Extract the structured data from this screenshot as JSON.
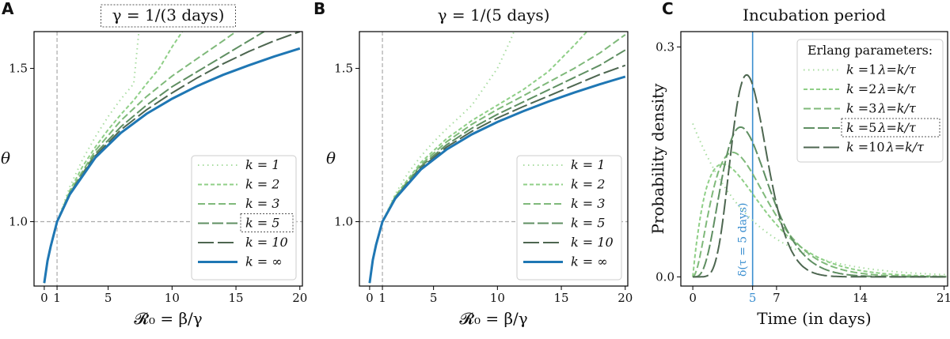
{
  "chart_data": [
    {
      "panel": "A",
      "type": "line",
      "title": "γ = 1/(3 days)",
      "title_boxed": true,
      "xlabel": "𝓡₀ = β/γ",
      "ylabel": "θ",
      "xlim": [
        -0.8,
        20.2
      ],
      "ylim": [
        0.79,
        1.62
      ],
      "xticks": [
        0,
        1,
        5,
        10,
        15,
        20
      ],
      "xtick_labels": [
        "0",
        "1",
        "5",
        "10",
        "15",
        "20"
      ],
      "yticks": [
        1.0,
        1.5
      ],
      "ytick_labels": [
        "1.0",
        "1.5"
      ],
      "reference_lines": {
        "vertical_x": 1,
        "horizontal_y": 1.0
      },
      "legend_position": "lower-right",
      "series": [
        {
          "name": "k = 1",
          "k": 1,
          "x": [
            0,
            0.25,
            0.5,
            1,
            2,
            3,
            4,
            5,
            6,
            7,
            7.4
          ],
          "y": [
            0.8,
            0.875,
            0.924,
            1.0,
            1.114,
            1.203,
            1.277,
            1.343,
            1.4,
            1.45,
            1.62
          ]
        },
        {
          "name": "k = 2",
          "k": 2,
          "x": [
            0,
            0.25,
            0.5,
            1,
            2,
            3,
            4,
            5,
            6,
            7,
            8,
            9,
            10,
            10.8
          ],
          "y": [
            0.8,
            0.874,
            0.922,
            1.0,
            1.102,
            1.18,
            1.244,
            1.3,
            1.35,
            1.396,
            1.45,
            1.5,
            1.57,
            1.62
          ]
        },
        {
          "name": "k = 3",
          "k": 3,
          "x": [
            0,
            0.25,
            0.5,
            1,
            2,
            4,
            6,
            8,
            10,
            12,
            14,
            15
          ],
          "y": [
            0.8,
            0.873,
            0.921,
            1.0,
            1.097,
            1.232,
            1.33,
            1.408,
            1.475,
            1.533,
            1.59,
            1.62
          ]
        },
        {
          "name": "k = 5",
          "k": 5,
          "x": [
            0,
            0.25,
            0.5,
            1,
            2,
            4,
            6,
            8,
            10,
            12,
            14,
            16,
            17.2
          ],
          "y": [
            0.8,
            0.873,
            0.92,
            1.0,
            1.093,
            1.222,
            1.31,
            1.38,
            1.44,
            1.49,
            1.54,
            1.59,
            1.62
          ]
        },
        {
          "name": "k = 10",
          "k": 10,
          "x": [
            0,
            0.25,
            0.5,
            1,
            2,
            4,
            6,
            8,
            10,
            12,
            14,
            16,
            18,
            20
          ],
          "y": [
            0.8,
            0.872,
            0.92,
            1.0,
            1.091,
            1.215,
            1.3,
            1.365,
            1.42,
            1.47,
            1.515,
            1.555,
            1.59,
            1.62
          ]
        },
        {
          "name": "k = ∞",
          "k": "inf",
          "x": [
            0,
            0.25,
            0.5,
            1,
            2,
            4,
            6,
            8,
            10,
            12,
            14,
            16,
            18,
            20
          ],
          "y": [
            0.8,
            0.872,
            0.919,
            1.0,
            1.089,
            1.209,
            1.29,
            1.352,
            1.401,
            1.443,
            1.479,
            1.51,
            1.539,
            1.565
          ]
        }
      ],
      "legend_highlight": "k = 5"
    },
    {
      "panel": "B",
      "type": "line",
      "title": "γ = 1/(5 days)",
      "title_boxed": false,
      "xlabel": "𝓡₀ = β/γ",
      "ylabel": "θ",
      "xlim": [
        -0.8,
        20.2
      ],
      "ylim": [
        0.79,
        1.62
      ],
      "xticks": [
        0,
        1,
        5,
        10,
        15,
        20
      ],
      "xtick_labels": [
        "0",
        "1",
        "5",
        "10",
        "15",
        "20"
      ],
      "yticks": [
        1.0,
        1.5
      ],
      "ytick_labels": [
        "1.0",
        "1.5"
      ],
      "reference_lines": {
        "vertical_x": 1,
        "horizontal_y": 1.0
      },
      "legend_position": "lower-right",
      "series": [
        {
          "name": "k = 1",
          "k": 1,
          "x": [
            0,
            0.25,
            0.5,
            1,
            2,
            3,
            4,
            5,
            6,
            7,
            8,
            9,
            10,
            11,
            11.3
          ],
          "y": [
            0.8,
            0.878,
            0.93,
            1.0,
            1.09,
            1.158,
            1.213,
            1.26,
            1.302,
            1.34,
            1.38,
            1.44,
            1.5,
            1.59,
            1.62
          ]
        },
        {
          "name": "k = 2",
          "k": 2,
          "x": [
            0,
            0.25,
            0.5,
            1,
            2,
            4,
            6,
            8,
            10,
            12,
            14,
            16,
            17
          ],
          "y": [
            0.8,
            0.877,
            0.928,
            1.0,
            1.084,
            1.193,
            1.27,
            1.33,
            1.38,
            1.43,
            1.49,
            1.575,
            1.62
          ]
        },
        {
          "name": "k = 3",
          "k": 3,
          "x": [
            0,
            0.25,
            0.5,
            1,
            2,
            4,
            6,
            8,
            10,
            12,
            14,
            16,
            18,
            20
          ],
          "y": [
            0.8,
            0.876,
            0.927,
            1.0,
            1.081,
            1.186,
            1.26,
            1.318,
            1.366,
            1.41,
            1.455,
            1.5,
            1.55,
            1.61
          ]
        },
        {
          "name": "k = 5",
          "k": 5,
          "x": [
            0,
            0.25,
            0.5,
            1,
            2,
            4,
            6,
            8,
            10,
            12,
            14,
            16,
            18,
            20
          ],
          "y": [
            0.8,
            0.876,
            0.926,
            1.0,
            1.079,
            1.18,
            1.25,
            1.305,
            1.35,
            1.39,
            1.43,
            1.47,
            1.51,
            1.56
          ]
        },
        {
          "name": "k = 10",
          "k": 10,
          "x": [
            0,
            0.25,
            0.5,
            1,
            2,
            4,
            6,
            8,
            10,
            12,
            14,
            16,
            18,
            20
          ],
          "y": [
            0.8,
            0.875,
            0.925,
            1.0,
            1.077,
            1.174,
            1.243,
            1.295,
            1.338,
            1.375,
            1.41,
            1.445,
            1.48,
            1.51
          ]
        },
        {
          "name": "k = ∞",
          "k": "inf",
          "x": [
            0,
            0.25,
            0.5,
            1,
            2,
            4,
            6,
            8,
            10,
            12,
            14,
            16,
            18,
            20
          ],
          "y": [
            0.8,
            0.875,
            0.924,
            1.0,
            1.075,
            1.17,
            1.235,
            1.285,
            1.325,
            1.36,
            1.392,
            1.421,
            1.448,
            1.473
          ]
        }
      ]
    },
    {
      "panel": "C",
      "type": "line",
      "title": "Incubation period",
      "xlabel": "Time (in days)",
      "ylabel": "Probability density",
      "xlim": [
        -1,
        21.3
      ],
      "ylim": [
        -0.012,
        0.32
      ],
      "xticks": [
        0,
        5,
        7,
        14,
        21
      ],
      "xtick_labels": [
        "0",
        "5",
        "7",
        "14",
        "21"
      ],
      "xtick_highlight": "5",
      "yticks": [
        0.0,
        0.3
      ],
      "ytick_labels": [
        "0.0",
        "0.3"
      ],
      "legend_position": "top-right",
      "legend_title": "Erlang parameters:",
      "lambda_label": "λ=k/τ",
      "delta_line": {
        "x": 5,
        "label": "δ(τ = 5 days)"
      },
      "series": [
        {
          "name": "k = 1",
          "k_label": "1",
          "k": 1,
          "tau": 5
        },
        {
          "name": "k = 2",
          "k_label": "2",
          "k": 2,
          "tau": 5
        },
        {
          "name": "k = 3",
          "k_label": "3",
          "k": 3,
          "tau": 5
        },
        {
          "name": "k = 5",
          "k_label": "5",
          "k": 5,
          "tau": 5
        },
        {
          "name": "k = 10",
          "k_label": "10",
          "k": 10,
          "tau": 5
        }
      ],
      "legend_highlight": "k = 5"
    }
  ],
  "styles": {
    "k1": {
      "color": "#a8dca0",
      "dash": "1.5,4.5",
      "width": 2
    },
    "k2": {
      "color": "#8fcf87",
      "dash": "5,3",
      "width": 2
    },
    "k3": {
      "color": "#7fb97a",
      "dash": "9,4",
      "width": 2
    },
    "k5": {
      "color": "#5f8f62",
      "dash": "14,4",
      "width": 2
    },
    "k10": {
      "color": "#4d6650",
      "dash": "20,5",
      "width": 2
    },
    "kinf": {
      "color": "#1f77b4",
      "dash": "",
      "width": 3
    },
    "delta": {
      "color": "#3b8fd0"
    },
    "refline": {
      "color": "#aaaaaa"
    }
  }
}
